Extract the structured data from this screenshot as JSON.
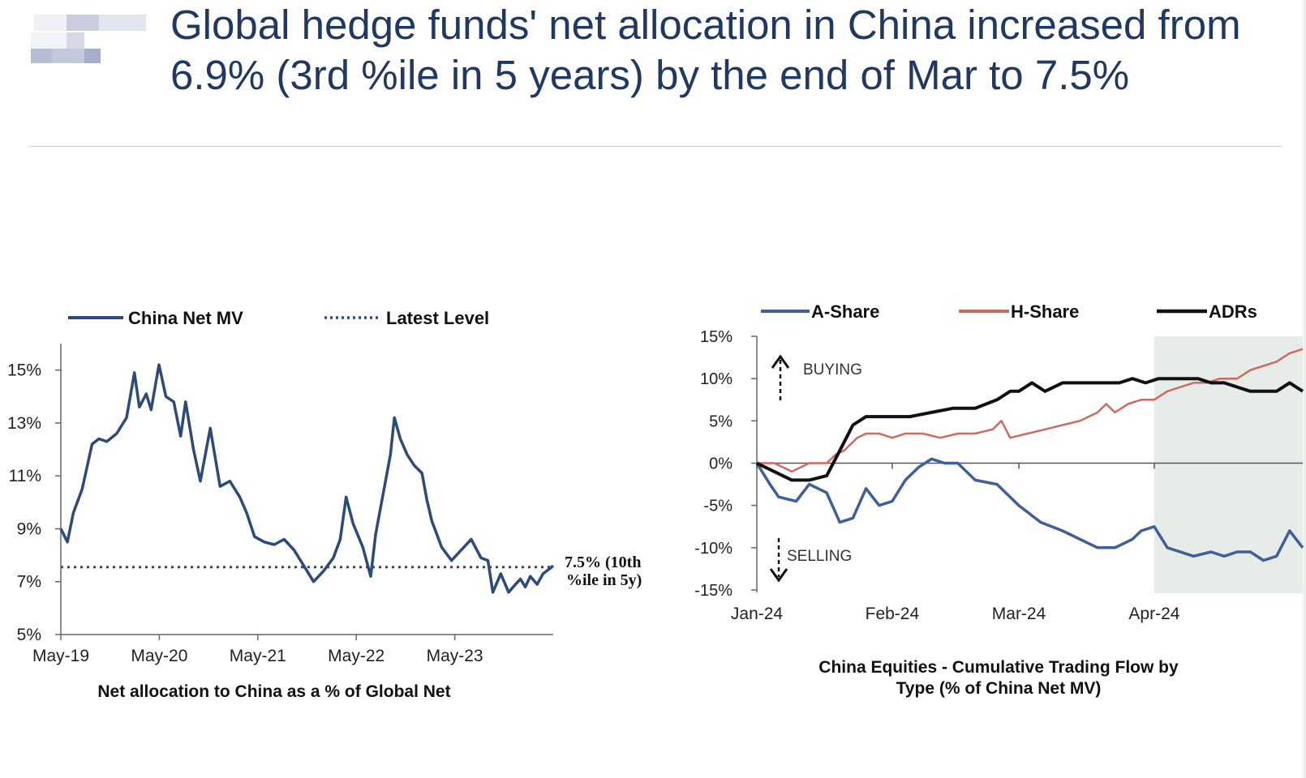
{
  "slide": {
    "title_line1": "Global hedge funds' net allocation in China increased from",
    "title_line2": "6.9% (3rd %ile in 5 years) by the end of Mar to 7.5%"
  },
  "colors": {
    "title": "#1f3864",
    "china_net_mv": "#2d4a7c",
    "a_share": "#3d5f9a",
    "h_share": "#cd6b61",
    "adrs": "#111111",
    "shade": "#e7ece9"
  },
  "chart_data": [
    {
      "type": "line",
      "xlabel": "Net allocation to China as a % of Global Net",
      "ylabel": "",
      "ylim": [
        5,
        16
      ],
      "yticks": [
        5,
        7,
        9,
        11,
        13,
        15
      ],
      "ytick_labels": [
        "5%",
        "7%",
        "9%",
        "11%",
        "13%",
        "15%"
      ],
      "xlim": [
        2019.333,
        2024.333
      ],
      "xticks": [
        2019.333,
        2020.333,
        2021.333,
        2022.333,
        2023.333
      ],
      "xtick_labels": [
        "May-19",
        "May-20",
        "May-21",
        "May-22",
        "May-23"
      ],
      "legend": [
        "China Net MV",
        "Latest Level"
      ],
      "annotation": [
        "7.5% (10th",
        "%ile in 5y)"
      ],
      "series": [
        {
          "name": "China Net MV",
          "x": [
            2019.333,
            2019.4,
            2019.46,
            2019.55,
            2019.65,
            2019.72,
            2019.8,
            2019.9,
            2020.0,
            2020.08,
            2020.13,
            2020.2,
            2020.25,
            2020.33,
            2020.4,
            2020.48,
            2020.55,
            2020.6,
            2020.68,
            2020.75,
            2020.85,
            2020.95,
            2021.05,
            2021.15,
            2021.22,
            2021.3,
            2021.4,
            2021.5,
            2021.6,
            2021.7,
            2021.8,
            2021.9,
            2022.0,
            2022.1,
            2022.17,
            2022.23,
            2022.3,
            2022.4,
            2022.48,
            2022.53,
            2022.6,
            2022.68,
            2022.72,
            2022.78,
            2022.85,
            2022.92,
            2023.0,
            2023.05,
            2023.1,
            2023.2,
            2023.3,
            2023.4,
            2023.5,
            2023.6,
            2023.67,
            2023.72,
            2023.8,
            2023.88,
            2023.95,
            2024.0,
            2024.05,
            2024.1,
            2024.17,
            2024.23,
            2024.3,
            2024.333
          ],
          "values": [
            9.0,
            8.5,
            9.6,
            10.5,
            12.2,
            12.4,
            12.3,
            12.6,
            13.2,
            14.9,
            13.6,
            14.1,
            13.5,
            15.2,
            14.0,
            13.8,
            12.5,
            13.8,
            12.0,
            10.8,
            12.8,
            10.6,
            10.8,
            10.2,
            9.6,
            8.7,
            8.5,
            8.4,
            8.6,
            8.2,
            7.6,
            7.0,
            7.4,
            7.9,
            8.6,
            10.2,
            9.2,
            8.3,
            7.2,
            8.8,
            10.2,
            11.8,
            13.2,
            12.4,
            11.8,
            11.4,
            11.1,
            10.1,
            9.3,
            8.3,
            7.8,
            8.2,
            8.6,
            7.9,
            7.8,
            6.6,
            7.3,
            6.6,
            6.9,
            7.1,
            6.8,
            7.2,
            6.9,
            7.3,
            7.5,
            7.6
          ]
        },
        {
          "name": "Latest Level",
          "x": [
            2019.333,
            2024.333
          ],
          "values": [
            7.55,
            7.55
          ]
        }
      ]
    },
    {
      "type": "line",
      "title": "China Equities - Cumulative Trading Flow by Type (% of China Net MV)",
      "title_lines": [
        "China Equities - Cumulative Trading Flow by",
        "Type (% of China Net MV)"
      ],
      "ylim": [
        -15,
        15
      ],
      "yticks": [
        -15,
        -10,
        -5,
        0,
        5,
        10,
        15
      ],
      "ytick_labels": [
        "-15%",
        "-10%",
        "-5%",
        "0%",
        "5%",
        "10%",
        "15%"
      ],
      "xlim": [
        0,
        125
      ],
      "xticks": [
        0,
        31,
        60,
        91
      ],
      "xtick_labels": [
        "Jan-24",
        "Feb-24",
        "Mar-24",
        "Apr-24"
      ],
      "shaded_from": 91,
      "annotations": [
        "BUYING",
        "SELLING"
      ],
      "legend": [
        "A-Share",
        "H-Share",
        "ADRs"
      ],
      "series": [
        {
          "name": "A-Share",
          "x": [
            0,
            3,
            5,
            9,
            12,
            16,
            19,
            22,
            25,
            28,
            31,
            34,
            37,
            40,
            43,
            46,
            50,
            55,
            60,
            65,
            70,
            74,
            78,
            82,
            86,
            88,
            91,
            94,
            97,
            100,
            104,
            107,
            110,
            113,
            116,
            119,
            122,
            125
          ],
          "values": [
            0,
            -2.5,
            -4,
            -4.5,
            -2.5,
            -3.5,
            -7,
            -6.5,
            -3,
            -5,
            -4.5,
            -2,
            -0.5,
            0.5,
            0,
            0,
            -2,
            -2.5,
            -5,
            -7,
            -8,
            -9,
            -10,
            -10,
            -9,
            -8,
            -7.5,
            -10,
            -10.5,
            -11,
            -10.5,
            -11,
            -10.5,
            -10.5,
            -11.5,
            -11,
            -8,
            -10
          ]
        },
        {
          "name": "H-Share",
          "x": [
            0,
            4,
            8,
            12,
            16,
            18,
            20,
            23,
            25,
            28,
            31,
            34,
            38,
            42,
            46,
            50,
            54,
            56,
            58,
            62,
            66,
            70,
            74,
            78,
            80,
            82,
            85,
            88,
            91,
            94,
            97,
            100,
            103,
            106,
            110,
            113,
            116,
            119,
            122,
            125
          ],
          "values": [
            0,
            0,
            -1,
            0,
            0,
            1,
            1.5,
            3,
            3.5,
            3.5,
            3,
            3.5,
            3.5,
            3,
            3.5,
            3.5,
            4,
            5,
            3,
            3.5,
            4,
            4.5,
            5,
            6,
            7,
            6,
            7,
            7.5,
            7.5,
            8.5,
            9,
            9.5,
            9.5,
            10,
            10,
            11,
            11.5,
            12,
            13,
            13.5
          ]
        },
        {
          "name": "ADRs",
          "x": [
            0,
            4,
            8,
            12,
            16,
            18,
            20,
            22,
            25,
            28,
            31,
            35,
            40,
            45,
            50,
            55,
            58,
            60,
            63,
            66,
            70,
            75,
            80,
            83,
            86,
            89,
            92,
            95,
            98,
            101,
            104,
            107,
            110,
            113,
            116,
            119,
            122,
            125
          ],
          "values": [
            0,
            -1,
            -2,
            -2,
            -1.5,
            0.5,
            2.5,
            4.5,
            5.5,
            5.5,
            5.5,
            5.5,
            6,
            6.5,
            6.5,
            7.5,
            8.5,
            8.5,
            9.5,
            8.5,
            9.5,
            9.5,
            9.5,
            9.5,
            10,
            9.5,
            10,
            10,
            10,
            10,
            9.5,
            9.5,
            9,
            8.5,
            8.5,
            8.5,
            9.5,
            8.5
          ]
        }
      ]
    }
  ]
}
